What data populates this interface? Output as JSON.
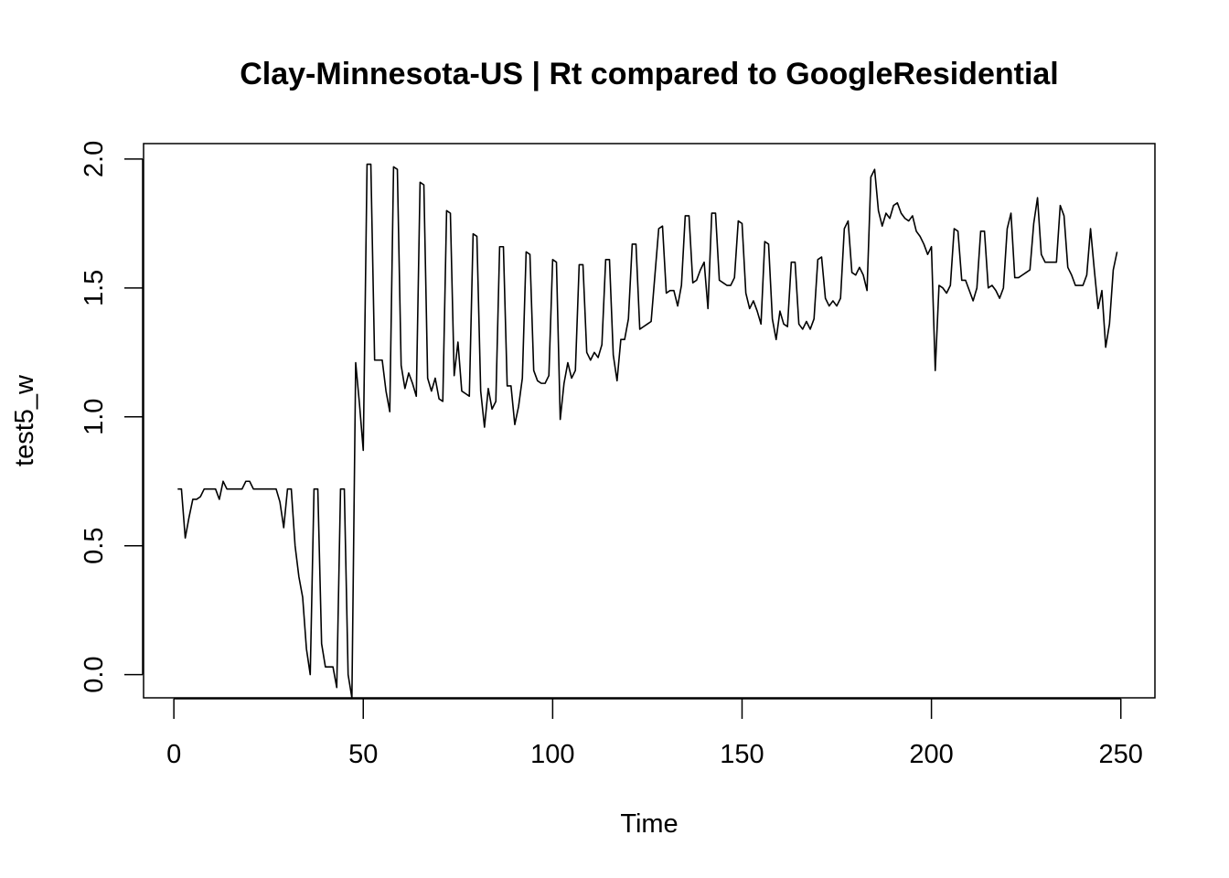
{
  "chart_data": {
    "type": "line",
    "title": "Clay-Minnesota-US | Rt compared to GoogleResidential",
    "xlabel": "Time",
    "ylabel": "test5_w",
    "xlim": [
      -8,
      259
    ],
    "ylim": [
      -0.09,
      2.06
    ],
    "x_ticks": [
      0,
      50,
      100,
      150,
      200,
      250
    ],
    "x_tick_labels": [
      "0",
      "50",
      "100",
      "150",
      "200",
      "250"
    ],
    "y_ticks": [
      0.0,
      0.5,
      1.0,
      1.5,
      2.0
    ],
    "y_tick_labels": [
      "0.0",
      "0.5",
      "1.0",
      "1.5",
      "2.0"
    ],
    "grid": false,
    "legend": "none",
    "series": [
      {
        "x_start": 1,
        "values": [
          0.72,
          0.72,
          0.53,
          0.61,
          0.68,
          0.68,
          0.69,
          0.72,
          0.72,
          0.72,
          0.72,
          0.68,
          0.75,
          0.72,
          0.72,
          0.72,
          0.72,
          0.72,
          0.75,
          0.75,
          0.72,
          0.72,
          0.72,
          0.72,
          0.72,
          0.72,
          0.72,
          0.67,
          0.57,
          0.72,
          0.72,
          0.5,
          0.38,
          0.3,
          0.1,
          0.0,
          0.72,
          0.72,
          0.12,
          0.03,
          0.03,
          0.03,
          -0.05,
          0.72,
          0.72,
          0.0,
          -0.09,
          1.21,
          1.05,
          0.87,
          1.98,
          1.98,
          1.22,
          1.22,
          1.22,
          1.1,
          1.02,
          1.97,
          1.96,
          1.2,
          1.11,
          1.17,
          1.13,
          1.08,
          1.91,
          1.9,
          1.15,
          1.1,
          1.15,
          1.07,
          1.06,
          1.8,
          1.79,
          1.16,
          1.29,
          1.1,
          1.09,
          1.08,
          1.71,
          1.7,
          1.1,
          0.96,
          1.11,
          1.03,
          1.06,
          1.66,
          1.66,
          1.12,
          1.12,
          0.97,
          1.04,
          1.15,
          1.64,
          1.63,
          1.18,
          1.14,
          1.13,
          1.13,
          1.16,
          1.61,
          1.6,
          0.99,
          1.13,
          1.21,
          1.15,
          1.18,
          1.59,
          1.59,
          1.25,
          1.22,
          1.25,
          1.23,
          1.28,
          1.61,
          1.61,
          1.24,
          1.14,
          1.3,
          1.3,
          1.38,
          1.67,
          1.67,
          1.34,
          1.35,
          1.36,
          1.37,
          1.55,
          1.73,
          1.74,
          1.48,
          1.49,
          1.49,
          1.43,
          1.51,
          1.78,
          1.78,
          1.52,
          1.53,
          1.57,
          1.6,
          1.42,
          1.79,
          1.79,
          1.53,
          1.52,
          1.51,
          1.51,
          1.54,
          1.76,
          1.75,
          1.48,
          1.42,
          1.45,
          1.41,
          1.36,
          1.68,
          1.67,
          1.38,
          1.3,
          1.41,
          1.36,
          1.35,
          1.6,
          1.6,
          1.36,
          1.34,
          1.37,
          1.34,
          1.38,
          1.61,
          1.62,
          1.46,
          1.43,
          1.45,
          1.43,
          1.46,
          1.73,
          1.76,
          1.56,
          1.55,
          1.58,
          1.55,
          1.49,
          1.93,
          1.96,
          1.8,
          1.74,
          1.79,
          1.77,
          1.82,
          1.83,
          1.79,
          1.77,
          1.76,
          1.78,
          1.72,
          1.7,
          1.67,
          1.63,
          1.66,
          1.18,
          1.51,
          1.5,
          1.48,
          1.51,
          1.73,
          1.72,
          1.53,
          1.53,
          1.49,
          1.45,
          1.5,
          1.72,
          1.72,
          1.5,
          1.51,
          1.49,
          1.46,
          1.5,
          1.73,
          1.79,
          1.54,
          1.54,
          1.55,
          1.56,
          1.57,
          1.75,
          1.85,
          1.63,
          1.6,
          1.6,
          1.6,
          1.6,
          1.82,
          1.78,
          1.58,
          1.55,
          1.51,
          1.51,
          1.51,
          1.55,
          1.73,
          1.57,
          1.42,
          1.49,
          1.27,
          1.36,
          1.57,
          1.64
        ]
      }
    ]
  }
}
